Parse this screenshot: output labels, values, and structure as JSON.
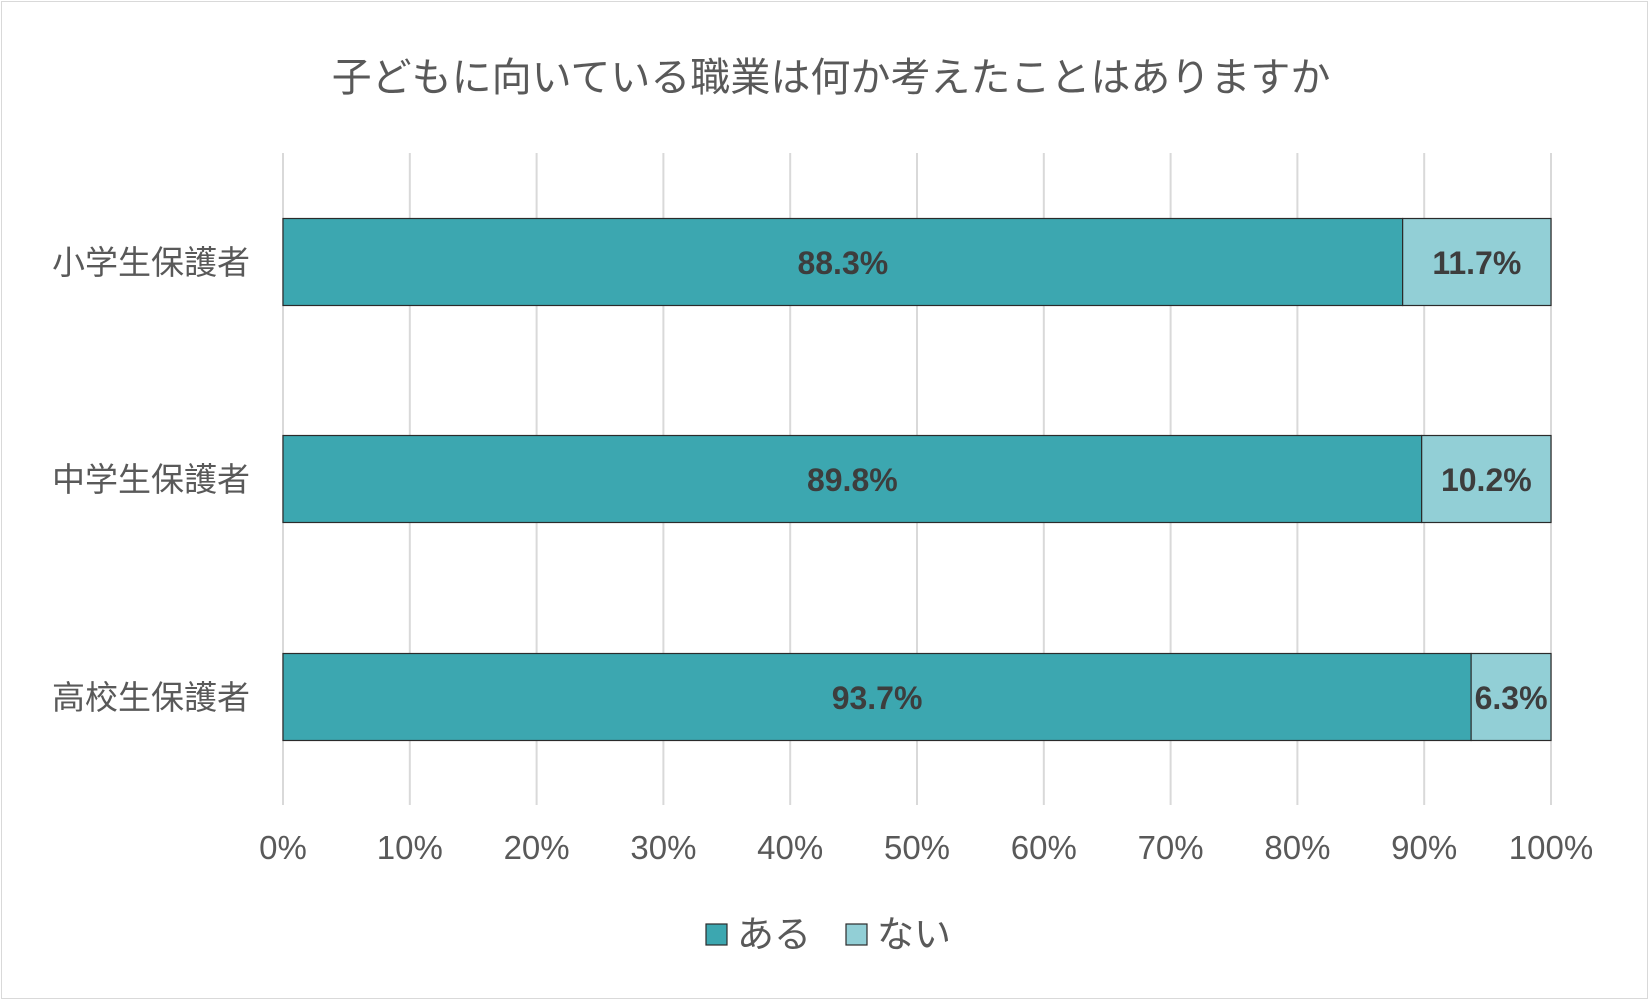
{
  "chart_data": {
    "type": "bar",
    "orientation": "horizontal",
    "stacked": "percent",
    "title": "子どもに向いている職業は何か考えたことはありますか",
    "categories": [
      "小学生保護者",
      "中学生保護者",
      "高校生保護者"
    ],
    "series": [
      {
        "name": "ある",
        "color": "#3ca7b0",
        "values": [
          88.3,
          89.8,
          93.7
        ],
        "labels": [
          "88.3%",
          "89.8%",
          "93.7%"
        ]
      },
      {
        "name": "ない",
        "color": "#92cfd6",
        "values": [
          11.7,
          10.2,
          6.3
        ],
        "labels": [
          "11.7%",
          "10.2%",
          "6.3%"
        ]
      }
    ],
    "xlim": [
      0,
      100
    ],
    "x_ticks": [
      "0%",
      "10%",
      "20%",
      "30%",
      "40%",
      "50%",
      "60%",
      "70%",
      "80%",
      "90%",
      "100%"
    ],
    "grid": true,
    "legend_position": "bottom"
  }
}
